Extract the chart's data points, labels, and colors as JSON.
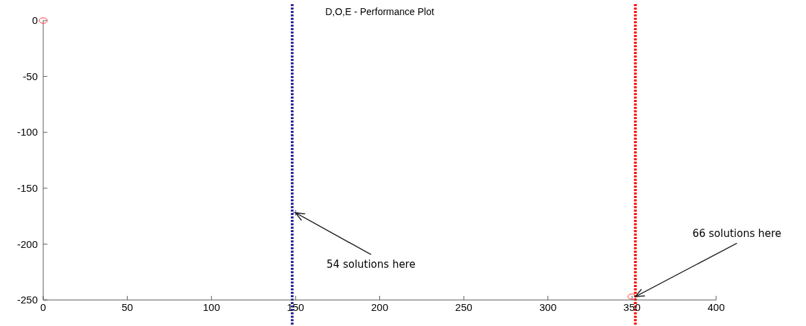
{
  "chart_data": {
    "type": "scatter",
    "title": "D,O,E - Performance Plot",
    "xlim": [
      0,
      400
    ],
    "ylim": [
      -250,
      0
    ],
    "xticks": [
      0,
      50,
      100,
      150,
      200,
      250,
      300,
      350,
      400
    ],
    "yticks": [
      0,
      -50,
      -100,
      -150,
      -200,
      -250
    ],
    "grid": false,
    "series": [
      {
        "color": "#ff3333",
        "marker": "circle",
        "x": [
          0,
          350
        ],
        "values": [
          0,
          -247
        ]
      },
      {
        "color": "#3333aa",
        "marker": "cross",
        "x": [
          150
        ],
        "values": [
          -172
        ]
      }
    ],
    "ref_lines": [
      {
        "axis": "x",
        "value": 148,
        "color": "#2b2b9e",
        "line_style": "dotted"
      },
      {
        "axis": "x",
        "value": 352,
        "color": "#ff0000",
        "line_style": "dotted"
      }
    ],
    "annotations": [
      {
        "text": "54 solutions here",
        "x": 150,
        "y": -172
      },
      {
        "text": "66 solutions here",
        "x": 352,
        "y": -247
      }
    ]
  }
}
